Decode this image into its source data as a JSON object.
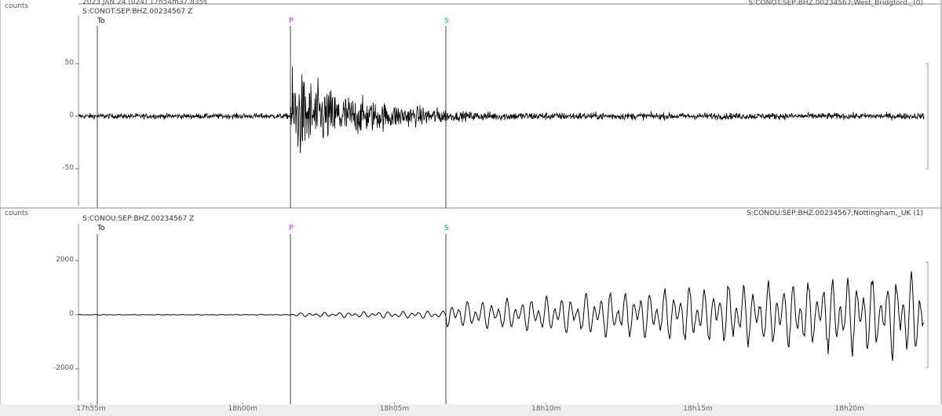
{
  "header": {
    "origin_time": "2023 JAN 24 (024) 17h54m37.835s"
  },
  "traces": [
    {
      "units": "counts",
      "channel_left": "S:CONOT:SEP:BHZ.00234567 Z",
      "channel_right": "S:CONOT:SEP:BHZ.00234567;West_Bridgford,_(0)",
      "y_ticks": [
        50,
        0,
        -50
      ],
      "y_tick_labels": [
        "50",
        "0",
        "-50"
      ],
      "trace_color": "#000000"
    },
    {
      "units": "counts",
      "channel_left": "S:CONOU:SEP:BHZ.00234567 Z",
      "channel_right": "S:CONOU:SEP:BHZ.00234567;Nottingham,_UK (1)",
      "y_ticks": [
        2000,
        0,
        -2000
      ],
      "y_tick_labels": [
        "2000",
        "0",
        "-2000"
      ],
      "trace_color": "#000000"
    }
  ],
  "phase_markers": [
    {
      "label": "To",
      "color": "#000000"
    },
    {
      "label": "P",
      "color": "#ff00ff"
    },
    {
      "label": "S",
      "color": "#00aaaa"
    }
  ],
  "time_axis": {
    "tick_labels": [
      "17h55m",
      "18h00m",
      "18h05m",
      "18h10m",
      "18h15m",
      "18h20m"
    ]
  }
}
